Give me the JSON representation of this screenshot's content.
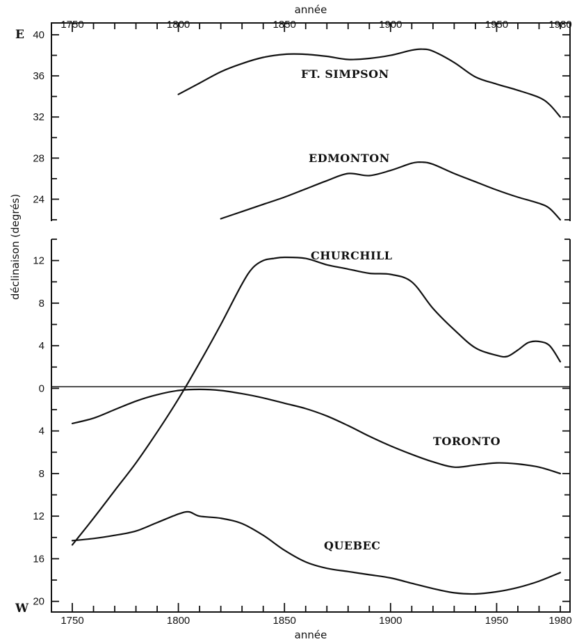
{
  "chart_data": {
    "type": "line",
    "x_label_top": "année",
    "x_label_bottom": "année",
    "y_label": "déclinaison (degrés)",
    "east_label": "E",
    "west_label": "W",
    "x_ticks_top": [
      1750,
      1800,
      1850,
      1900,
      1950,
      1980
    ],
    "x_ticks_bottom": [
      1750,
      1800,
      1850,
      1900,
      1950,
      1980
    ],
    "xlim": [
      1740,
      1982
    ],
    "panels": [
      {
        "id": "upper",
        "ylim": [
          22,
          40
        ],
        "y_ticks": [
          24,
          28,
          32,
          36,
          40
        ],
        "y_tick_labels": [
          "24",
          "28",
          "32",
          "36",
          "40"
        ],
        "series": [
          {
            "name": "FT. SIMPSON",
            "x": [
              1800,
              1810,
              1820,
              1830,
              1840,
              1850,
              1860,
              1870,
              1880,
              1890,
              1900,
              1910,
              1915,
              1920,
              1930,
              1940,
              1950,
              1960,
              1970,
              1975,
              1980
            ],
            "y": [
              34.2,
              35.3,
              36.4,
              37.2,
              37.8,
              38.1,
              38.1,
              37.9,
              37.6,
              37.7,
              38.0,
              38.5,
              38.6,
              38.4,
              37.3,
              35.9,
              35.2,
              34.6,
              33.9,
              33.2,
              32.0
            ]
          },
          {
            "name": "EDMONTON",
            "x": [
              1820,
              1830,
              1840,
              1850,
              1860,
              1870,
              1880,
              1890,
              1900,
              1910,
              1915,
              1920,
              1930,
              1940,
              1950,
              1960,
              1970,
              1975,
              1980
            ],
            "y": [
              22.1,
              22.8,
              23.5,
              24.2,
              25.0,
              25.8,
              26.5,
              26.3,
              26.8,
              27.5,
              27.6,
              27.4,
              26.5,
              25.7,
              24.9,
              24.2,
              23.6,
              23.1,
              22.0
            ]
          }
        ]
      },
      {
        "id": "lower",
        "ylim": [
          -21,
          14
        ],
        "y_ticks": [
          12,
          8,
          4,
          0,
          -4,
          -8,
          -12,
          -16,
          -20
        ],
        "y_tick_labels": [
          "12",
          "8",
          "4",
          "0",
          "4",
          "8",
          "12",
          "16",
          "20"
        ],
        "series": [
          {
            "name": "CHURCHILL",
            "x": [
              1750,
              1760,
              1770,
              1780,
              1790,
              1800,
              1810,
              1820,
              1830,
              1835,
              1840,
              1845,
              1850,
              1860,
              1870,
              1880,
              1890,
              1900,
              1910,
              1920,
              1930,
              1940,
              1950,
              1955,
              1960,
              1965,
              1970,
              1975,
              1980
            ],
            "y": [
              -14.7,
              -12.2,
              -9.6,
              -7.0,
              -4.1,
              -1.0,
              2.4,
              6.0,
              9.8,
              11.3,
              12.0,
              12.2,
              12.3,
              12.2,
              11.6,
              11.2,
              10.8,
              10.7,
              10.0,
              7.5,
              5.5,
              3.8,
              3.1,
              3.0,
              3.6,
              4.3,
              4.4,
              4.0,
              2.5
            ]
          },
          {
            "name": "TORONTO",
            "x": [
              1750,
              1760,
              1770,
              1780,
              1790,
              1800,
              1810,
              1820,
              1830,
              1840,
              1850,
              1860,
              1870,
              1880,
              1890,
              1900,
              1910,
              1920,
              1930,
              1940,
              1950,
              1960,
              1970,
              1980
            ],
            "y": [
              -3.3,
              -2.8,
              -2.0,
              -1.2,
              -0.6,
              -0.2,
              -0.1,
              -0.2,
              -0.5,
              -0.9,
              -1.4,
              -1.9,
              -2.6,
              -3.5,
              -4.5,
              -5.4,
              -6.2,
              -6.9,
              -7.4,
              -7.2,
              -7.0,
              -7.1,
              -7.4,
              -8.0
            ]
          },
          {
            "name": "QUEBEC",
            "x": [
              1750,
              1760,
              1770,
              1780,
              1790,
              1800,
              1805,
              1810,
              1820,
              1830,
              1840,
              1850,
              1860,
              1870,
              1880,
              1890,
              1900,
              1910,
              1920,
              1930,
              1940,
              1950,
              1960,
              1970,
              1980
            ],
            "y": [
              -14.3,
              -14.1,
              -13.8,
              -13.4,
              -12.6,
              -11.8,
              -11.6,
              -12.0,
              -12.2,
              -12.7,
              -13.8,
              -15.2,
              -16.3,
              -16.9,
              -17.2,
              -17.5,
              -17.8,
              -18.3,
              -18.8,
              -19.2,
              -19.3,
              -19.1,
              -18.7,
              -18.1,
              -17.3
            ]
          }
        ]
      }
    ]
  }
}
